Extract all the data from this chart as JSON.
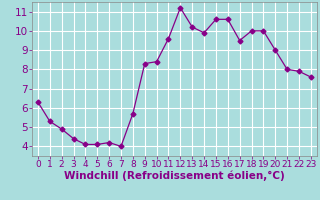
{
  "x": [
    0,
    1,
    2,
    3,
    4,
    5,
    6,
    7,
    8,
    9,
    10,
    11,
    12,
    13,
    14,
    15,
    16,
    17,
    18,
    19,
    20,
    21,
    22,
    23
  ],
  "y": [
    6.3,
    5.3,
    4.9,
    4.4,
    4.1,
    4.1,
    4.2,
    4.0,
    5.7,
    8.3,
    8.4,
    9.6,
    11.2,
    10.2,
    9.9,
    10.6,
    10.6,
    9.5,
    10.0,
    10.0,
    9.0,
    8.0,
    7.9,
    7.6
  ],
  "line_color": "#880088",
  "marker": "D",
  "marker_size": 2.5,
  "bg_color": "#aadddd",
  "grid_color": "#ffffff",
  "xlabel": "Windchill (Refroidissement éolien,°C)",
  "ylim": [
    3.5,
    11.5
  ],
  "xlim": [
    -0.5,
    23.5
  ],
  "yticks": [
    4,
    5,
    6,
    7,
    8,
    9,
    10,
    11
  ],
  "xticks": [
    0,
    1,
    2,
    3,
    4,
    5,
    6,
    7,
    8,
    9,
    10,
    11,
    12,
    13,
    14,
    15,
    16,
    17,
    18,
    19,
    20,
    21,
    22,
    23
  ],
  "tick_color": "#880088",
  "xlabel_fontsize": 7.5,
  "xtick_fontsize": 6.5,
  "ytick_fontsize": 7.5
}
